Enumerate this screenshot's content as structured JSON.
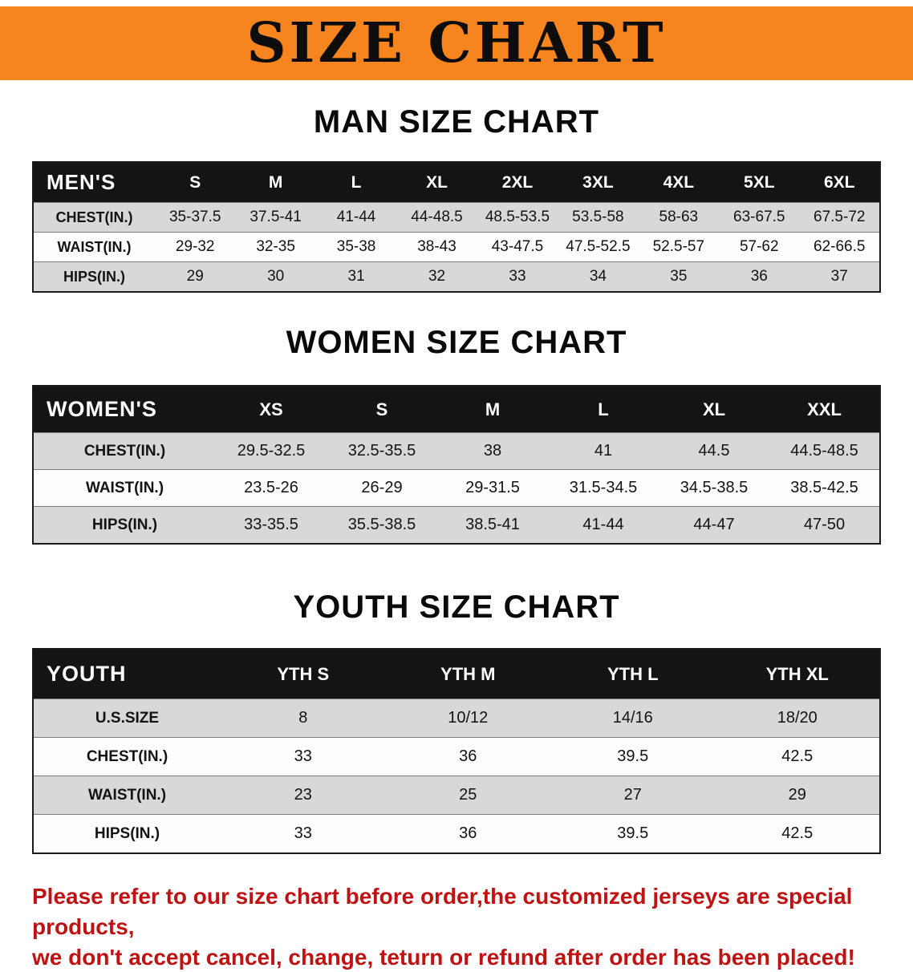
{
  "banner": {
    "title": "SIZE CHART"
  },
  "colors": {
    "banner_bg": "#F6851F",
    "table_header_bg": "#141414",
    "row_alt_gray": "#D8D8D8",
    "footer_text": "#C01212"
  },
  "sections": [
    {
      "heading": "MAN SIZE CHART",
      "table": {
        "header": [
          "MEN'S",
          "S",
          "M",
          "L",
          "XL",
          "2XL",
          "3XL",
          "4XL",
          "5XL",
          "6XL"
        ],
        "rows": [
          [
            "CHEST(IN.)",
            "35-37.5",
            "37.5-41",
            "41-44",
            "44-48.5",
            "48.5-53.5",
            "53.5-58",
            "58-63",
            "63-67.5",
            "67.5-72"
          ],
          [
            "WAIST(IN.)",
            "29-32",
            "32-35",
            "35-38",
            "38-43",
            "43-47.5",
            "47.5-52.5",
            "52.5-57",
            "57-62",
            "62-66.5"
          ],
          [
            "HIPS(IN.)",
            "29",
            "30",
            "31",
            "32",
            "33",
            "34",
            "35",
            "36",
            "37"
          ]
        ]
      }
    },
    {
      "heading": "WOMEN SIZE CHART",
      "table": {
        "header": [
          "WOMEN'S",
          "XS",
          "S",
          "M",
          "L",
          "XL",
          "XXL"
        ],
        "rows": [
          [
            "CHEST(IN.)",
            "29.5-32.5",
            "32.5-35.5",
            "38",
            "41",
            "44.5",
            "44.5-48.5"
          ],
          [
            "WAIST(IN.)",
            "23.5-26",
            "26-29",
            "29-31.5",
            "31.5-34.5",
            "34.5-38.5",
            "38.5-42.5"
          ],
          [
            "HIPS(IN.)",
            "33-35.5",
            "35.5-38.5",
            "38.5-41",
            "41-44",
            "44-47",
            "47-50"
          ]
        ]
      }
    },
    {
      "heading": "YOUTH SIZE CHART",
      "table": {
        "header": [
          "YOUTH",
          "YTH S",
          "YTH M",
          "YTH L",
          "YTH XL"
        ],
        "rows": [
          [
            "U.S.SIZE",
            "8",
            "10/12",
            "14/16",
            "18/20"
          ],
          [
            "CHEST(IN.)",
            "33",
            "36",
            "39.5",
            "42.5"
          ],
          [
            "WAIST(IN.)",
            "23",
            "25",
            "27",
            "29"
          ],
          [
            "HIPS(IN.)",
            "33",
            "36",
            "39.5",
            "42.5"
          ]
        ]
      }
    }
  ],
  "footer": {
    "lines": [
      "Please refer to our size chart before order,the customized jerseys are special products,",
      "we don't accept cancel, change, teturn or refund after order has been placed!"
    ]
  }
}
